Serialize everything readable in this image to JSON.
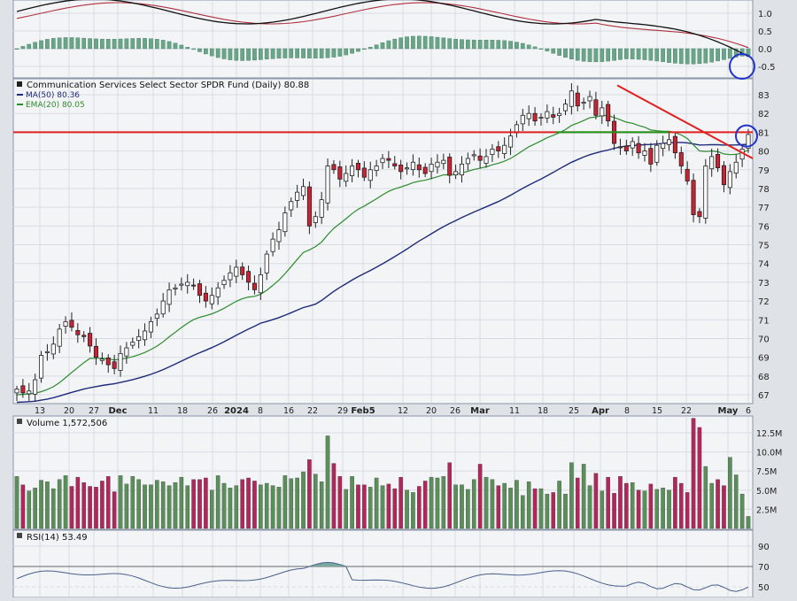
{
  "chart_data": {
    "type": "candlestick",
    "main_panel": {
      "title": "Communication Services Select Sector SPDR Fund (Daily) 80.88",
      "legend": [
        {
          "label": "MA(50) 80.36",
          "color": "#1f2a7a"
        },
        {
          "label": "EMA(20) 80.05",
          "color": "#2e8b2e"
        }
      ],
      "y_axis": {
        "ticks": [
          "67",
          "68",
          "69",
          "70",
          "71",
          "72",
          "73",
          "74",
          "75",
          "76",
          "77",
          "78",
          "79",
          "80",
          "81",
          "82",
          "83"
        ],
        "ylim": [
          66.4,
          83.7
        ],
        "side": "right"
      },
      "x_axis": {
        "ticks": [
          "13",
          "20",
          "27",
          "Dec",
          "11",
          "18",
          "26",
          "2024",
          "8",
          "16",
          "22",
          "29",
          "Feb5",
          "12",
          "20",
          "26",
          "Mar",
          "11",
          "18",
          "25",
          "Apr",
          "8",
          "15",
          "22",
          "May",
          "6"
        ]
      },
      "overlays": {
        "support_resistance_level": 81.0,
        "support_resistance_color": "#e02020",
        "green_line_level": 81.0,
        "downtrend_line": {
          "from": 83.5,
          "to": 79.6,
          "color": "#e02020"
        },
        "highlight_circle_color": "#2233cc"
      },
      "closes": [
        67.3,
        67.1,
        67.2,
        67.8,
        69.1,
        69.3,
        69.7,
        70.5,
        70.9,
        70.6,
        70.2,
        70.1,
        69.6,
        69.0,
        68.9,
        68.6,
        68.4,
        69.2,
        69.5,
        69.8,
        70.1,
        70.4,
        70.9,
        71.3,
        72.0,
        72.6,
        72.7,
        72.9,
        73.0,
        72.8,
        72.3,
        72.0,
        72.3,
        72.7,
        73.1,
        73.5,
        73.8,
        73.4,
        73.0,
        72.6,
        73.4,
        74.5,
        75.3,
        75.8,
        76.7,
        77.3,
        77.8,
        78.1,
        76.0,
        76.5,
        77.4,
        79.2,
        79.0,
        78.5,
        78.8,
        79.2,
        79.0,
        78.6,
        79.0,
        79.2,
        79.6,
        79.5,
        79.2,
        78.9,
        79.1,
        79.4,
        79.0,
        78.8,
        79.3,
        79.4,
        79.5,
        78.7,
        78.9,
        79.3,
        79.6,
        79.8,
        79.5,
        79.7,
        80.1,
        80.0,
        80.3,
        80.8,
        81.4,
        81.9,
        82.0,
        81.6,
        81.8,
        82.1,
        81.8,
        82.0,
        82.5,
        83.2,
        82.4,
        82.6,
        82.9,
        81.9,
        82.3,
        81.6,
        80.4,
        80.2,
        80.0,
        80.5,
        79.9,
        80.0,
        79.3,
        80.3,
        80.4,
        80.6,
        79.9,
        79.2,
        78.4,
        76.6,
        76.5,
        79.2,
        79.7,
        79.1,
        78.2,
        78.9,
        79.4,
        80.1,
        80.88
      ],
      "ma50": {
        "start": 66.6,
        "end": 80.36,
        "color": "#1f2a7a"
      },
      "ema20": {
        "start": 67.0,
        "end": 80.05,
        "color": "#2e8b2e"
      }
    },
    "macd_panel": {
      "y_axis": {
        "ticks": [
          "1.0",
          "0.5",
          "0.0",
          "-0.5"
        ]
      },
      "lines": [
        {
          "color": "#111111"
        },
        {
          "color": "#b03040"
        }
      ],
      "histogram_color": "#6aa58a"
    },
    "volume_panel": {
      "title": "Volume 1,572,506",
      "y_axis": {
        "ticks": [
          "12.5M",
          "10.0M",
          "7.5M",
          "5.0M",
          "2.5M"
        ],
        "ylim": [
          0,
          14000000
        ]
      },
      "values": [
        6.8,
        5.7,
        4.9,
        5.3,
        6.3,
        6.1,
        5.2,
        6.4,
        6.9,
        5.5,
        6.7,
        6.0,
        5.5,
        5.4,
        6.2,
        6.8,
        4.8,
        6.9,
        5.8,
        6.8,
        6.4,
        5.7,
        5.7,
        6.3,
        6.1,
        5.6,
        6.0,
        6.7,
        5.6,
        6.4,
        6.4,
        6.6,
        5.0,
        6.9,
        5.9,
        5.3,
        5.6,
        6.4,
        6.6,
        6.2,
        5.7,
        5.9,
        5.6,
        5.4,
        6.9,
        6.5,
        6.6,
        7.4,
        9.0,
        7.1,
        6.1,
        12.1,
        8.5,
        6.8,
        5.1,
        6.8,
        5.7,
        5.7,
        5.4,
        6.6,
        5.6,
        5.8,
        5.2,
        6.7,
        5.0,
        4.7,
        5.5,
        6.2,
        6.7,
        6.6,
        6.8,
        8.6,
        5.7,
        5.7,
        5.1,
        6.4,
        8.4,
        6.7,
        6.4,
        5.6,
        5.9,
        5.3,
        6.3,
        4.3,
        6.1,
        5.2,
        5.2,
        4.5,
        4.7,
        6.2,
        4.5,
        8.6,
        6.6,
        8.4,
        5.6,
        7.2,
        4.9,
        6.7,
        4.6,
        6.8,
        5.9,
        6.0,
        5.0,
        4.9,
        5.8,
        5.1,
        5.3,
        5.0,
        6.7,
        5.9,
        4.7,
        14.4,
        13.2,
        8.1,
        5.9,
        6.4,
        5.6,
        9.3,
        7.0,
        4.5,
        1.57
      ]
    },
    "rsi_panel": {
      "title": "RSI(14) 53.49",
      "y_axis": {
        "ticks": [
          "90",
          "70",
          "50"
        ]
      },
      "overbought_fill_color": "#7aa9a0"
    }
  },
  "colors": {
    "background": "#f2f4f6",
    "grid": "#d8dce2",
    "up_candle": "#ffffff",
    "down_candle": "#cc2233",
    "vol_up": "#5a8f5a",
    "vol_down": "#b2275a"
  }
}
